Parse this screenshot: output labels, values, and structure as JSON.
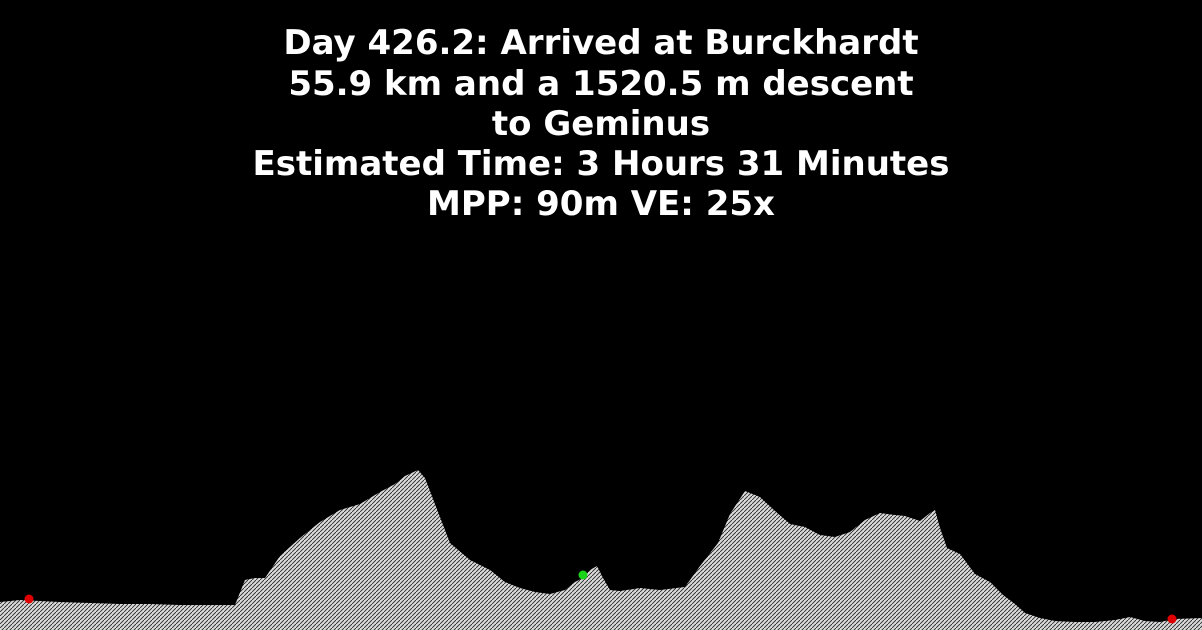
{
  "header": {
    "line1": "Day 426.2: Arrived at Burckhardt",
    "line2": "55.9 km and a 1520.5 m descent",
    "line3": "to Geminus",
    "line4": "Estimated Time: 3 Hours 31 Minutes",
    "line5": "MPP: 90m VE: 25x"
  },
  "colors": {
    "background": "#000000",
    "text": "#ffffff",
    "terrain_fill": "#d9d9d9",
    "terrain_hatch": "#2a2a2a",
    "endpoint_marker": "#e00000",
    "current_marker": "#19d419"
  },
  "markers": {
    "start": "endpoint-marker",
    "current": "current-position-marker",
    "end": "endpoint-marker"
  }
}
